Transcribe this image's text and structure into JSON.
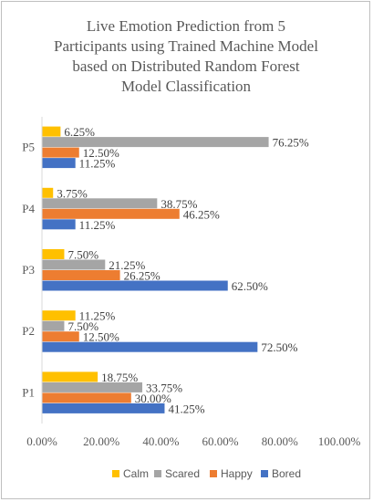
{
  "chart_data": {
    "type": "bar",
    "orientation": "horizontal",
    "title": "Live Emotion Prediction from 5 Participants using Trained Machine Model based on Distributed Random Forest Model Classification",
    "title_lines": [
      "Live Emotion Prediction from 5",
      "Participants using Trained Machine Model",
      "based on Distributed Random Forest",
      "Model Classification"
    ],
    "categories": [
      "P1",
      "P2",
      "P3",
      "P4",
      "P5"
    ],
    "series": [
      {
        "name": "Calm",
        "color": "#ffc000",
        "values": [
          18.75,
          11.25,
          7.5,
          3.75,
          6.25
        ],
        "labels": [
          "18.75%",
          "11.25%",
          "7.50%",
          "3.75%",
          "6.25%"
        ]
      },
      {
        "name": "Scared",
        "color": "#a5a5a5",
        "values": [
          33.75,
          7.5,
          21.25,
          38.75,
          76.25
        ],
        "labels": [
          "33.75%",
          "7.50%",
          "21.25%",
          "38.75%",
          "76.25%"
        ]
      },
      {
        "name": "Happy",
        "color": "#ed7d31",
        "values": [
          30.0,
          12.5,
          26.25,
          46.25,
          12.5
        ],
        "labels": [
          "30.00%",
          "12.50%",
          "26.25%",
          "46.25%",
          "12.50%"
        ]
      },
      {
        "name": "Bored",
        "color": "#4472c4",
        "values": [
          41.25,
          72.5,
          62.5,
          11.25,
          11.25
        ],
        "labels": [
          "41.25%",
          "72.50%",
          "62.50%",
          "11.25%",
          "11.25%"
        ]
      }
    ],
    "xlim": [
      0,
      100
    ],
    "xticks": [
      0,
      20,
      40,
      60,
      80,
      100
    ],
    "xtick_labels": [
      "0.00%",
      "20.00%",
      "40.00%",
      "60.00%",
      "80.00%",
      "100.00%"
    ],
    "xlabel": "",
    "ylabel": "",
    "grid": false,
    "legend_position": "bottom"
  }
}
